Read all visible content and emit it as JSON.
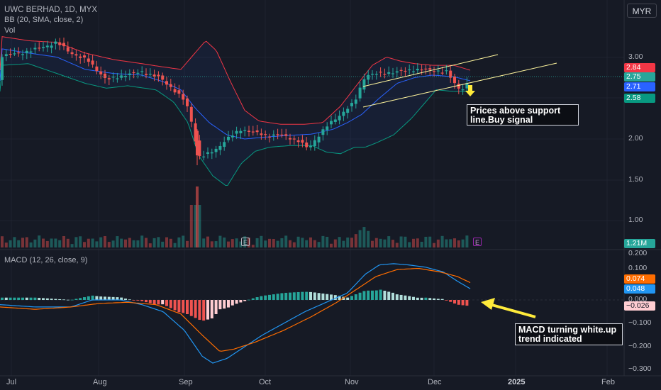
{
  "header": {
    "symbol_title": "UWC BERHAD, 1D, MYX",
    "bb_indicator": "BB (20, SMA, close, 2)",
    "vol_indicator": "Vol",
    "currency": "MYR"
  },
  "macd_header": "MACD (12, 26, close, 9)",
  "price_axis": {
    "ticks": [
      "3.00",
      "2.50",
      "2.00",
      "1.50",
      "1.00"
    ],
    "badges": {
      "bb_upper": "2.84",
      "close": "2.75",
      "bb_basis": "2.71",
      "bb_lower": "2.58",
      "volume": "1.21M"
    }
  },
  "macd_axis": {
    "ticks": [
      "0.200",
      "0.100",
      "0.000",
      "−0.100",
      "−0.200",
      "−0.300"
    ],
    "badges": {
      "signal": "0.074",
      "macd": "0.048",
      "histogram": "−0.026"
    }
  },
  "time_axis": {
    "labels": [
      "Jul",
      "Aug",
      "Sep",
      "Oct",
      "Nov",
      "Dec",
      "2025",
      "Feb"
    ]
  },
  "annotations": {
    "note_support": "Prices above support line.Buy signal",
    "note_macd": "MACD turning white.up trend indicated"
  },
  "earnings_markers": [
    "E",
    "E"
  ],
  "colors": {
    "background": "#161a25",
    "up": "#26a69a",
    "down": "#ef5350",
    "bb_upper": "#f23645",
    "bb_basis": "#2962ff",
    "bb_lower": "#089981",
    "macd_line": "#2196f3",
    "signal_line": "#ff6d00",
    "hist_light_green": "#b2dfdb",
    "hist_light_red": "#ffcdd2",
    "annotation_arrow": "#ffeb3b",
    "trendline": "#fff59d"
  },
  "chart_data": {
    "type": "candlestick",
    "symbol": "UWC BERHAD",
    "interval": "1D",
    "currency": "MYR",
    "price_range": [
      0.86,
      3.2
    ],
    "last": {
      "close": 2.75,
      "bb_upper": 2.84,
      "bb_basis": 2.71,
      "bb_lower": 2.58,
      "volume": "1.21M"
    },
    "macd_range": [
      -0.31,
      0.2
    ],
    "macd_last": {
      "macd": 0.048,
      "signal": 0.074,
      "histogram": -0.026
    },
    "monthly_closes_approx": [
      {
        "month": "Jul",
        "close": 2.9
      },
      {
        "month": "Aug",
        "close": 2.7
      },
      {
        "month": "Sep",
        "close": 1.9
      },
      {
        "month": "Oct",
        "close": 2.05
      },
      {
        "month": "Nov",
        "close": 2.6
      },
      {
        "month": "Dec",
        "close": 2.75
      }
    ],
    "series": [
      {
        "name": "Close",
        "values": [
          3.05,
          3.1,
          3.2,
          3.05,
          2.95,
          2.8,
          2.7,
          2.85,
          2.8,
          2.6,
          2.5,
          2.3,
          1.75,
          1.85,
          2.1,
          2.15,
          2.05,
          2.05,
          1.95,
          2.05,
          2.3,
          2.85,
          2.9,
          2.95,
          2.85,
          2.75
        ]
      }
    ]
  }
}
